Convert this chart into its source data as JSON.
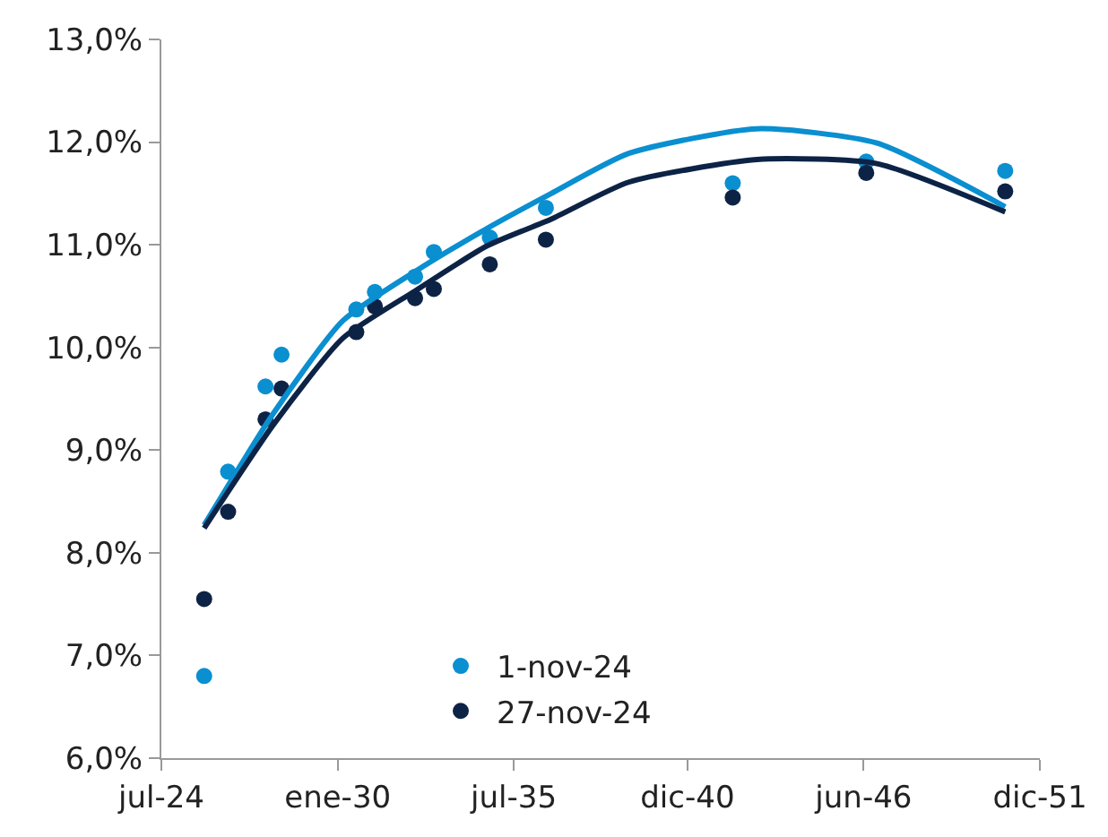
{
  "chart_data": {
    "type": "scatter",
    "marker": "circle",
    "grid": false,
    "legend": "bottom",
    "x": [
      "2025-11",
      "2026-08",
      "2027-10",
      "2028-04",
      "2030-08",
      "2031-03",
      "2032-06",
      "2033-01",
      "2034-10",
      "2036-07",
      "2042-05",
      "2046-07",
      "2050-11"
    ],
    "series": [
      {
        "name": "1-nov-24",
        "color": "#0a8fd0",
        "values": [
          6.8,
          8.79,
          9.62,
          9.93,
          10.37,
          10.54,
          10.69,
          10.93,
          11.07,
          11.36,
          11.6,
          11.81,
          11.72
        ]
      },
      {
        "name": "27-nov-24",
        "color": "#0d2346",
        "values": [
          7.55,
          8.4,
          9.3,
          9.6,
          10.15,
          10.4,
          10.48,
          10.57,
          10.81,
          11.05,
          11.46,
          11.7,
          11.52
        ]
      },
      {
        "type": "line",
        "marker": "none",
        "color": "#0a8fd0",
        "line_style": "solid",
        "x": [
          "2025-11",
          "2028-01",
          "2030-03",
          "2032-06",
          "2034-09",
          "2036-09",
          "2039-02",
          "2043-02",
          "2046-11",
          "2050-11"
        ],
        "values": [
          8.27,
          9.36,
          10.26,
          10.74,
          11.16,
          11.5,
          11.89,
          12.13,
          11.99,
          11.37
        ]
      },
      {
        "type": "line",
        "marker": "none",
        "color": "#0d2346",
        "line_style": "solid",
        "x": [
          "2025-11",
          "2028-01",
          "2030-03",
          "2032-06",
          "2034-09",
          "2036-09",
          "2039-02",
          "2043-02",
          "2046-11",
          "2050-11"
        ],
        "values": [
          8.24,
          9.25,
          10.09,
          10.55,
          10.99,
          11.25,
          11.61,
          11.83,
          11.79,
          11.32
        ]
      }
    ],
    "xlim": [
      "2024-07-01",
      "2051-12-01"
    ],
    "xticks": [
      {
        "value": "2024-07-01",
        "label": "jul-24"
      },
      {
        "value": "2030-01-01",
        "label": "ene-30"
      },
      {
        "value": "2035-07-01",
        "label": "jul-35"
      },
      {
        "value": "2040-12-01",
        "label": "dic-40"
      },
      {
        "value": "2046-06-01",
        "label": "jun-46"
      },
      {
        "value": "2051-12-01",
        "label": "dic-51"
      }
    ],
    "ylim": [
      6,
      13
    ],
    "yticks": [
      {
        "value": 6,
        "label": "6,0%"
      },
      {
        "value": 7,
        "label": "7,0%"
      },
      {
        "value": 8,
        "label": "8,0%"
      },
      {
        "value": 9,
        "label": "9,0%"
      },
      {
        "value": 10,
        "label": "10,0%"
      },
      {
        "value": 11,
        "label": "11,0%"
      },
      {
        "value": 12,
        "label": "12,0%"
      },
      {
        "value": 13,
        "label": "13,0%"
      }
    ]
  }
}
